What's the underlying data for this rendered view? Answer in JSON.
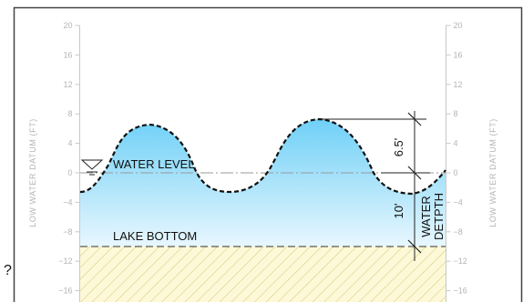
{
  "diagram": {
    "y_axis": {
      "title_left": "LOW WATER DATUM (FT)",
      "title_right": "LOW WATER DATUM (FT)",
      "ticks": [
        20,
        16,
        12,
        8,
        4,
        0,
        -4,
        -8,
        -12,
        -16
      ],
      "tick_labels": [
        "20",
        "16",
        "12",
        "8",
        "4",
        "0",
        "−4",
        "−8",
        "−12",
        "−16"
      ]
    },
    "labels": {
      "water_level": "WATER LEVEL",
      "lake_bottom": "LAKE BOTTOM",
      "wave_height": "6.5'",
      "water_depth_value": "10'",
      "water_depth_line1": "WATER",
      "water_depth_line2": "DETPTH",
      "edge_fragment": "?"
    },
    "colors": {
      "water_top": "#6fd0f7",
      "water_bottom": "#e8f7fe",
      "sediment": "#fdf9d8",
      "hatch": "#d9cf7d",
      "frame": "#444444",
      "tick": "#c8c8c8"
    }
  }
}
